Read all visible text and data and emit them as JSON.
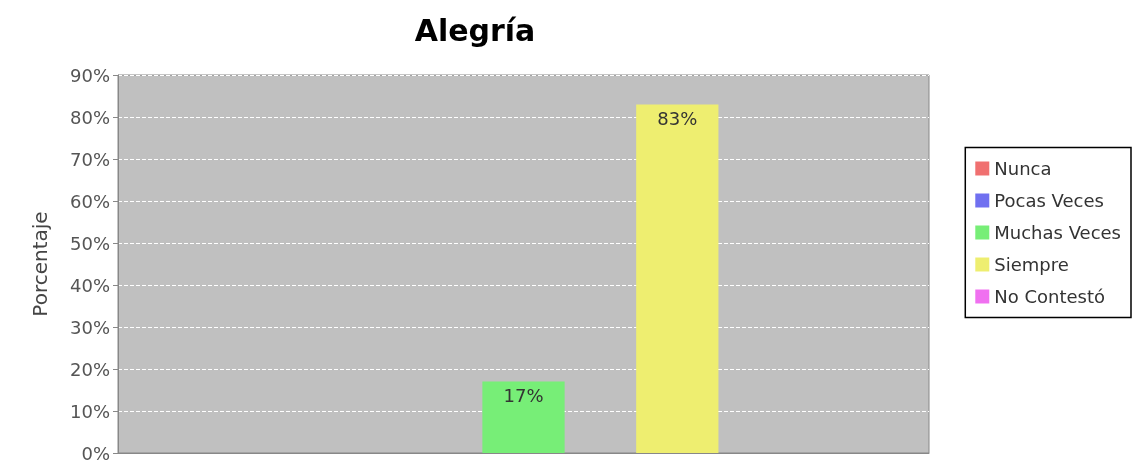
{
  "chart_data": {
    "type": "bar",
    "title": "Alegría",
    "ylabel": "Porcentaje",
    "categories": [
      null
    ],
    "series": [
      {
        "name": "Nunca",
        "color": "#f07070",
        "values": [
          0
        ]
      },
      {
        "name": "Pocas Veces",
        "color": "#7070f0",
        "values": [
          0
        ]
      },
      {
        "name": "Muchas Veces",
        "color": "#77ee77",
        "values": [
          17
        ],
        "value_labels": [
          "17%"
        ]
      },
      {
        "name": "Siempre",
        "color": "#eeee70",
        "values": [
          83
        ],
        "value_labels": [
          "83%"
        ]
      },
      {
        "name": "No Contestó",
        "color": "#f070f0",
        "values": [
          0
        ]
      }
    ],
    "ylim": [
      0,
      90
    ],
    "yticks": [
      {
        "value": 0,
        "label": "0%"
      },
      {
        "value": 10,
        "label": "10%"
      },
      {
        "value": 20,
        "label": "20%"
      },
      {
        "value": 30,
        "label": "30%"
      },
      {
        "value": 40,
        "label": "40%"
      },
      {
        "value": 50,
        "label": "50%"
      },
      {
        "value": 60,
        "label": "60%"
      },
      {
        "value": 70,
        "label": "70%"
      },
      {
        "value": 80,
        "label": "80%"
      },
      {
        "value": 90,
        "label": "90%"
      }
    ],
    "grid": "y",
    "legend": "right"
  }
}
